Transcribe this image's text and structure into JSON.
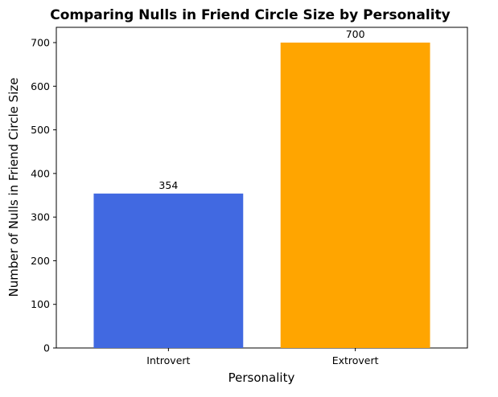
{
  "chart_data": {
    "type": "bar",
    "title": "Comparing Nulls in Friend Circle Size by Personality",
    "xlabel": "Personality",
    "ylabel": "Number of Nulls in Friend Circle Size",
    "categories": [
      "Introvert",
      "Extrovert"
    ],
    "values": [
      354,
      700
    ],
    "data_labels": [
      "354",
      "700"
    ],
    "colors": [
      "#4169E1",
      "#FFA500"
    ],
    "ylim": [
      0,
      735
    ],
    "yticks": [
      0,
      100,
      200,
      300,
      400,
      500,
      600,
      700
    ],
    "ytick_labels": [
      "0",
      "100",
      "200",
      "300",
      "400",
      "500",
      "600",
      "700"
    ],
    "grid": false,
    "legend": "none"
  }
}
